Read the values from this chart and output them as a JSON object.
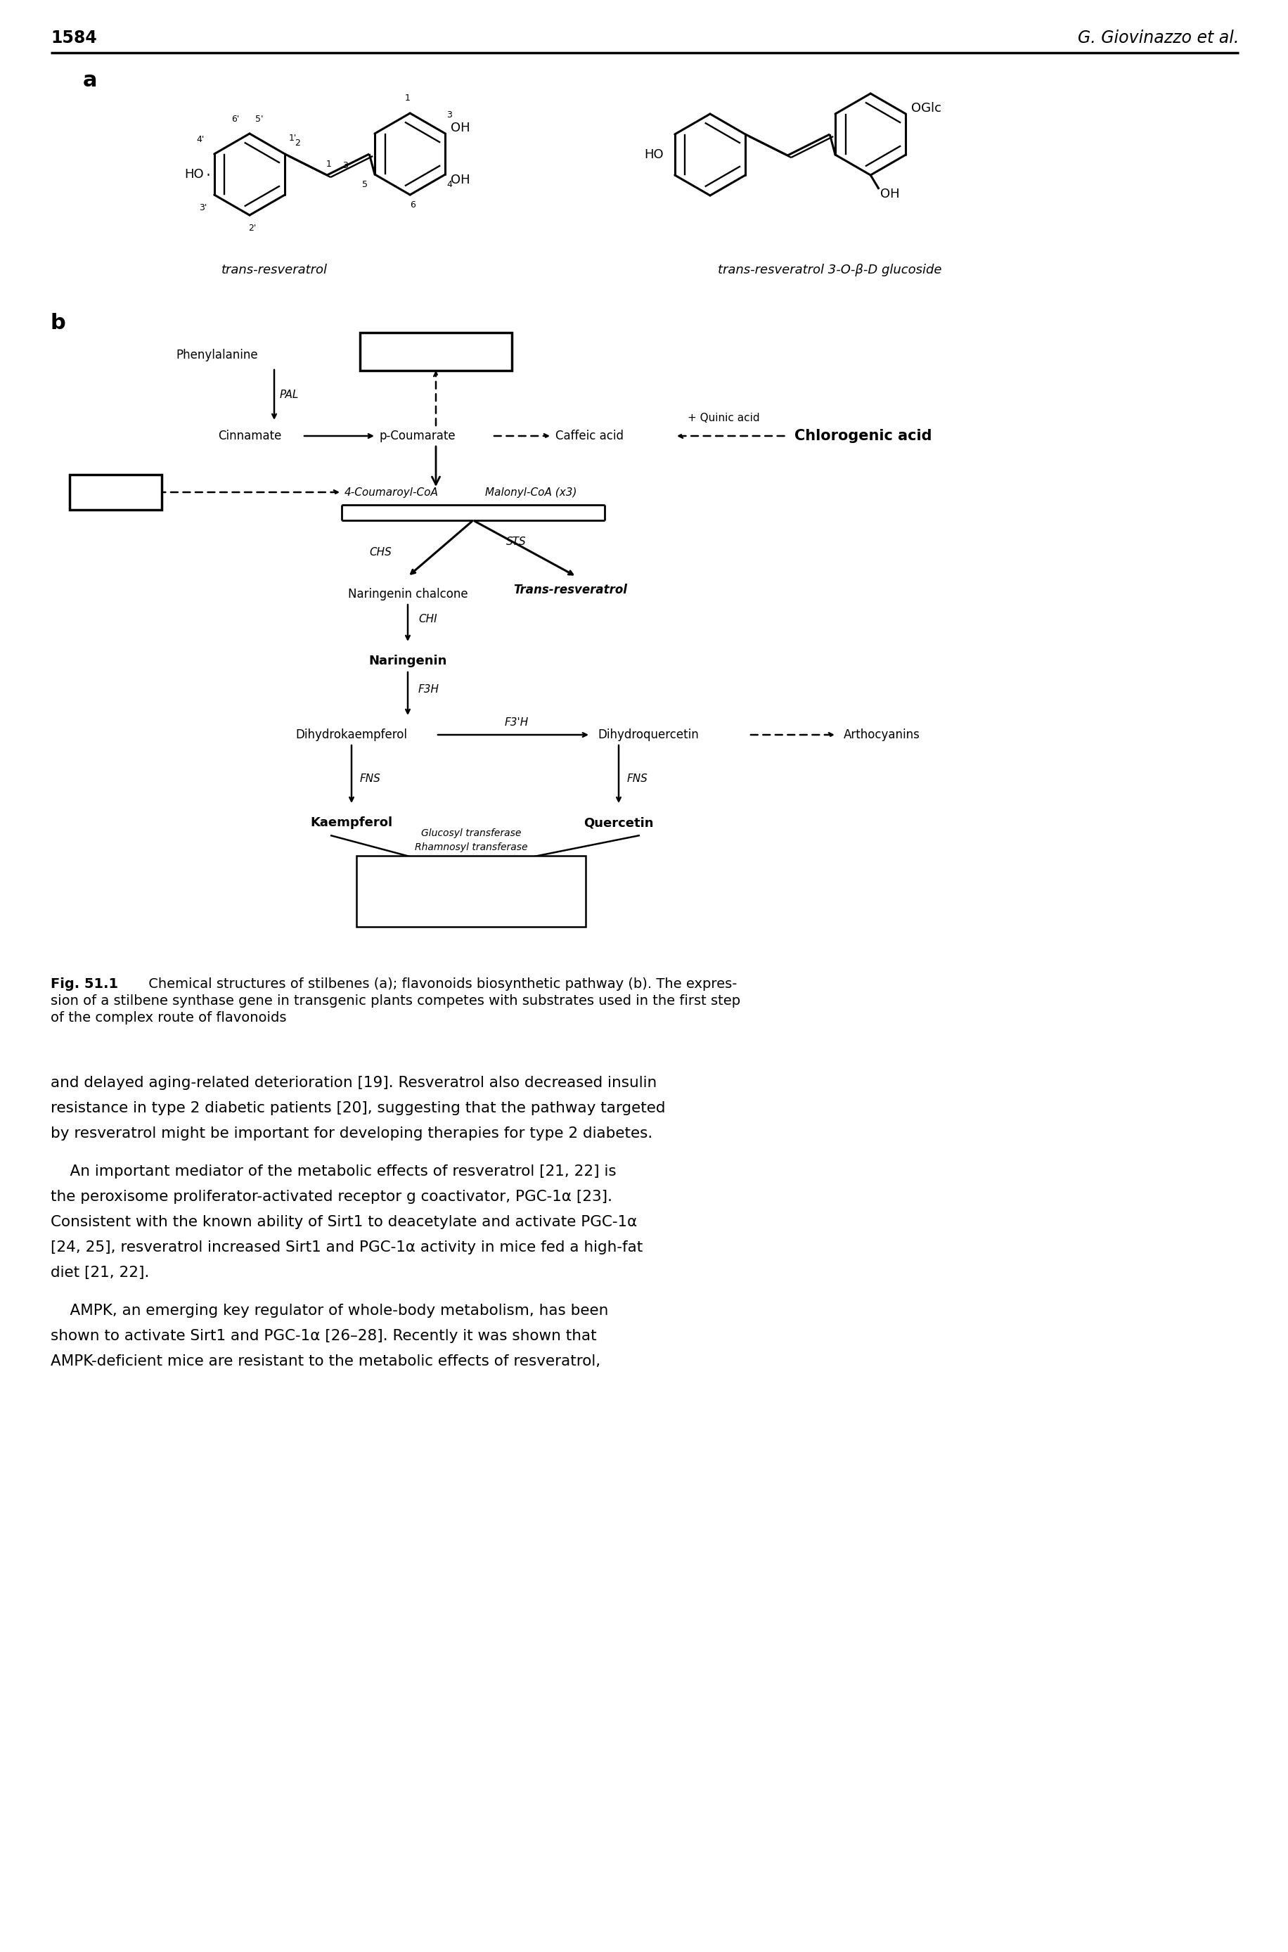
{
  "page_number": "1584",
  "author": "G. Giovinazzo et al.",
  "bg_color": "#ffffff",
  "fig_label_a": "a",
  "fig_label_b": "b",
  "caption_bold": "Fig. 51.1",
  "caption_rest_line1": " Chemical structures of stilbenes (a); flavonoids biosynthetic pathway (b). The expres-",
  "caption_line2": "sion of a stilbene synthase gene in transgenic plants competes with substrates used in the first step",
  "caption_line3": "of the complex route of flavonoids",
  "body_para1": [
    "and delayed aging-related deterioration [19]. Resveratrol also decreased insulin",
    "resistance in type 2 diabetic patients [20], suggesting that the pathway targeted",
    "by resveratrol might be important for developing therapies for type 2 diabetes."
  ],
  "body_para2_indent": "    An important mediator of the metabolic effects of resveratrol [21, 22] is",
  "body_para2_rest": [
    "the peroxisome proliferator-activated receptor g coactivator, PGC-1α [23].",
    "Consistent with the known ability of Sirt1 to deacetylate and activate PGC-1α",
    "[24, 25], resveratrol increased Sirt1 and PGC-1α activity in mice fed a high-fat",
    "diet [21, 22]."
  ],
  "body_para3_indent": "    AMPK, an emerging key regulator of whole-body metabolism, has been",
  "body_para3_rest": [
    "shown to activate Sirt1 and PGC-1α [26–28]. Recently it was shown that",
    "AMPK-deficient mice are resistant to the metabolic effects of resveratrol,"
  ]
}
